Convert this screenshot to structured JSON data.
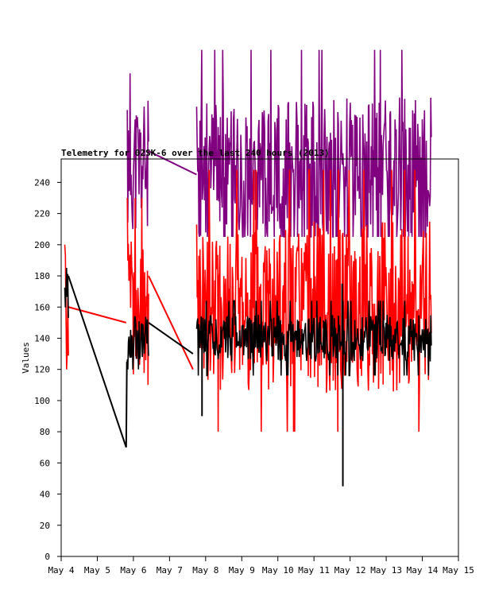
{
  "chart_data": {
    "type": "line",
    "title": "Telemetry for 02SK-6 over the last 240 hours (2013)",
    "xlabel": "",
    "ylabel": "Values",
    "ylim": [
      0,
      255
    ],
    "yticks": [
      0,
      20,
      40,
      60,
      80,
      100,
      120,
      140,
      160,
      180,
      200,
      220,
      240
    ],
    "xlim": [
      "May 4",
      "May 15"
    ],
    "xticks": [
      "May 4",
      "May 5",
      "May 6",
      "May 7",
      "May 8",
      "May 9",
      "May 10",
      "May 11",
      "May 12",
      "May 13",
      "May 14",
      "May 15"
    ],
    "grid": false,
    "legend": "none",
    "series": [
      {
        "color": "#800080",
        "segments": [
          {
            "start_day": 5.83,
            "end_day": 6.42,
            "base": 250,
            "amp": 45,
            "min": 210,
            "max": 310,
            "seed": 11
          },
          {
            "start_day": 7.75,
            "end_day": 14.25,
            "base": 245,
            "amp": 50,
            "min": 205,
            "max": 330,
            "seed": 23
          }
        ],
        "bridges": [
          [
            6.42,
            260,
            7.75,
            245
          ]
        ]
      },
      {
        "color": "#ff0000",
        "segments": [
          {
            "start_day": 4.1,
            "end_day": 4.2,
            "base": 165,
            "amp": 45,
            "min": 120,
            "max": 230,
            "seed": 5
          },
          {
            "start_day": 5.83,
            "end_day": 6.42,
            "base": 160,
            "amp": 45,
            "min": 110,
            "max": 230,
            "seed": 37
          },
          {
            "start_day": 7.75,
            "end_day": 14.25,
            "base": 160,
            "amp": 55,
            "min": 80,
            "max": 250,
            "seed": 41
          }
        ],
        "bridges": [
          [
            4.2,
            160,
            5.8,
            150
          ],
          [
            6.42,
            180,
            7.65,
            120
          ]
        ]
      },
      {
        "color": "#000000",
        "segments": [
          {
            "start_day": 4.1,
            "end_day": 4.2,
            "base": 170,
            "amp": 20,
            "min": 150,
            "max": 190,
            "seed": 7
          },
          {
            "start_day": 5.83,
            "end_day": 6.42,
            "base": 140,
            "amp": 14,
            "min": 120,
            "max": 172,
            "seed": 53
          },
          {
            "start_day": 7.75,
            "end_day": 14.25,
            "base": 140,
            "amp": 15,
            "min": 100,
            "max": 195,
            "seed": 61
          }
        ],
        "bridges": [
          [
            4.2,
            180,
            5.8,
            70
          ],
          [
            5.8,
            70,
            5.82,
            125
          ],
          [
            6.42,
            150,
            7.65,
            130
          ]
        ],
        "spikes": [
          [
            7.9,
            90
          ],
          [
            11.8,
            45
          ],
          [
            11.78,
            175
          ]
        ]
      }
    ]
  }
}
